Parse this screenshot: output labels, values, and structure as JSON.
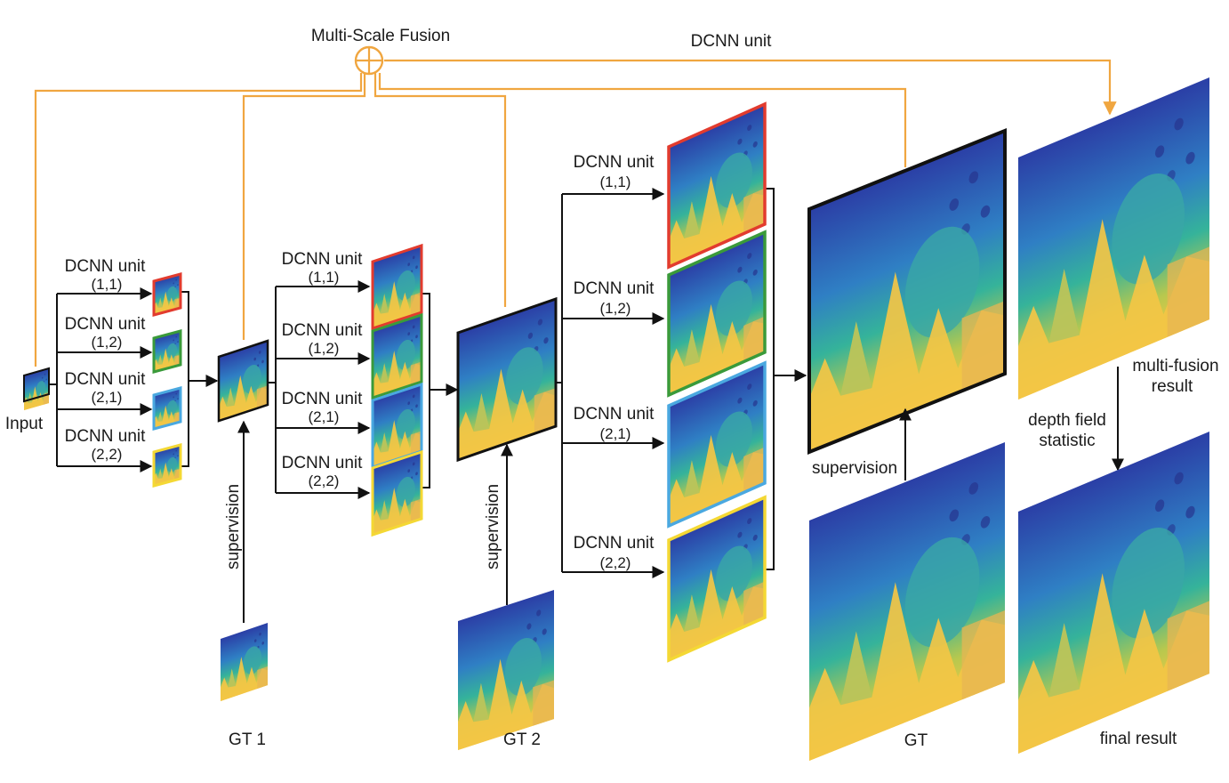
{
  "colors": {
    "fusion_wire": "#f0a640",
    "wire": "#111111",
    "unit_1_1": "#e23b2e",
    "unit_1_2": "#3a9a3a",
    "unit_2_1": "#4aa8e0",
    "unit_2_2": "#f4d834",
    "depth_far": "#2a3fa8",
    "depth_mid": "#35b09a",
    "depth_near": "#f4c745"
  },
  "icons": {
    "fusion": "circle-plus-icon"
  },
  "fusion": {
    "label": "Multi-Scale Fusion",
    "top_unit_label": "DCNN unit"
  },
  "input": {
    "label": "Input"
  },
  "stage1": {
    "units": [
      {
        "title": "DCNN unit",
        "sub": "(1,1)"
      },
      {
        "title": "DCNN unit",
        "sub": "(1,2)"
      },
      {
        "title": "DCNN unit",
        "sub": "(2,1)"
      },
      {
        "title": "DCNN unit",
        "sub": "(2,2)"
      }
    ],
    "supervision": "supervision",
    "gt": "GT 1"
  },
  "stage2": {
    "units": [
      {
        "title": "DCNN unit",
        "sub": "(1,1)"
      },
      {
        "title": "DCNN unit",
        "sub": "(1,2)"
      },
      {
        "title": "DCNN unit",
        "sub": "(2,1)"
      },
      {
        "title": "DCNN unit",
        "sub": "(2,2)"
      }
    ],
    "supervision": "supervision",
    "gt": "GT 2"
  },
  "stage3": {
    "units": [
      {
        "title": "DCNN unit",
        "sub": "(1,1)"
      },
      {
        "title": "DCNN unit",
        "sub": "(1,2)"
      },
      {
        "title": "DCNN unit",
        "sub": "(2,1)"
      },
      {
        "title": "DCNN unit",
        "sub": "(2,2)"
      }
    ],
    "supervision": "supervision",
    "gt": "GT"
  },
  "result": {
    "multi_fusion_line1": "multi-fusion",
    "multi_fusion_line2": "result",
    "statistic_line1": "depth field",
    "statistic_line2": "statistic",
    "final": "final result"
  }
}
